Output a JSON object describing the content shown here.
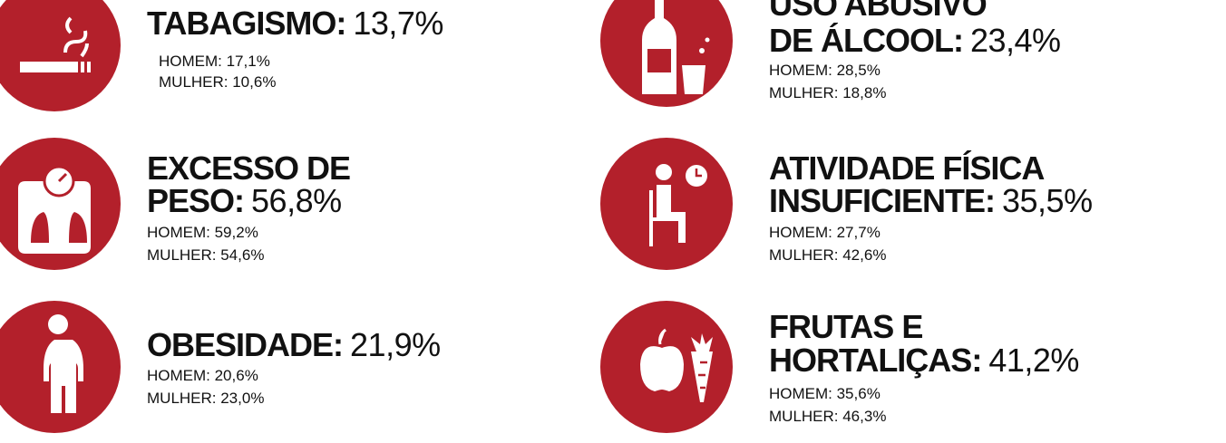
{
  "items": [
    {
      "title": [
        "TABAGISMO:"
      ],
      "value": "13,7%",
      "homem": "HOMEM: 17,1%",
      "mulher": "MULHER: 10,6%"
    },
    {
      "title": [
        "EXCESSO DE",
        "PESO:"
      ],
      "value": "56,8%",
      "homem": "HOMEM: 59,2%",
      "mulher": "MULHER: 54,6%"
    },
    {
      "title": [
        "OBESIDADE:"
      ],
      "value": "21,9%",
      "homem": "HOMEM: 20,6%",
      "mulher": "MULHER: 23,0%"
    },
    {
      "title": [
        "USO ABUSIVO",
        "DE ÁLCOOL:"
      ],
      "value": "23,4%",
      "homem": "HOMEM: 28,5%",
      "mulher": "MULHER: 18,8%"
    },
    {
      "title": [
        "ATIVIDADE FÍSICA",
        "INSUFICIENTE:"
      ],
      "value": "35,5%",
      "homem": "HOMEM: 27,7%",
      "mulher": "MULHER: 42,6%"
    },
    {
      "title": [
        "FRUTAS E",
        "HORTALIÇAS:"
      ],
      "value": "41,2%",
      "homem": "HOMEM: 35,6%",
      "mulher": "MULHER: 46,3%"
    }
  ]
}
